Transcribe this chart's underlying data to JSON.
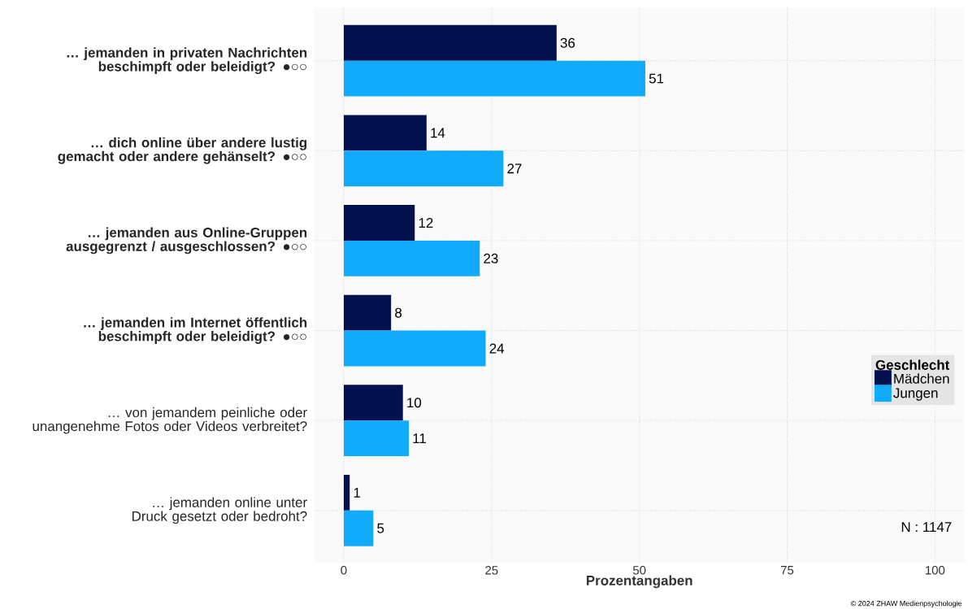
{
  "chart_data": {
    "type": "bar",
    "orientation": "horizontal",
    "categories": [
      "**… jemanden in privaten Nachrichten beschimpft oder beleidigt? ●○○**",
      "**… dich online über andere lustig gemacht oder andere gehänselt? ●○○**",
      "**… jemanden aus Online-Gruppen ausgegrenzt / ausgeschlossen? ●○○**",
      "**… jemanden im Internet öffentlich beschimpft oder beleidigt? ●○○**",
      "… von jemandem peinliche oder unangenehme Fotos oder Videos verbreitet?",
      "… jemanden online unter Druck gesetzt oder bedroht?"
    ],
    "series": [
      {
        "name": "Mädchen",
        "color": "#03114f",
        "values": [
          36,
          14,
          12,
          8,
          10,
          1
        ]
      },
      {
        "name": "Jungen",
        "color": "#12aafc",
        "values": [
          51,
          27,
          23,
          24,
          11,
          5
        ]
      }
    ],
    "xlabel": "Prozentangaben",
    "legend_title": "Geschlecht",
    "xlim": [
      -5,
      105
    ],
    "xticks": [
      0,
      25,
      50,
      75,
      100
    ],
    "grid": true,
    "legend": "right",
    "data_labels": true,
    "annotations": [
      "N : 1147",
      "© 2024 ZHAW Medienpsychologie"
    ]
  }
}
